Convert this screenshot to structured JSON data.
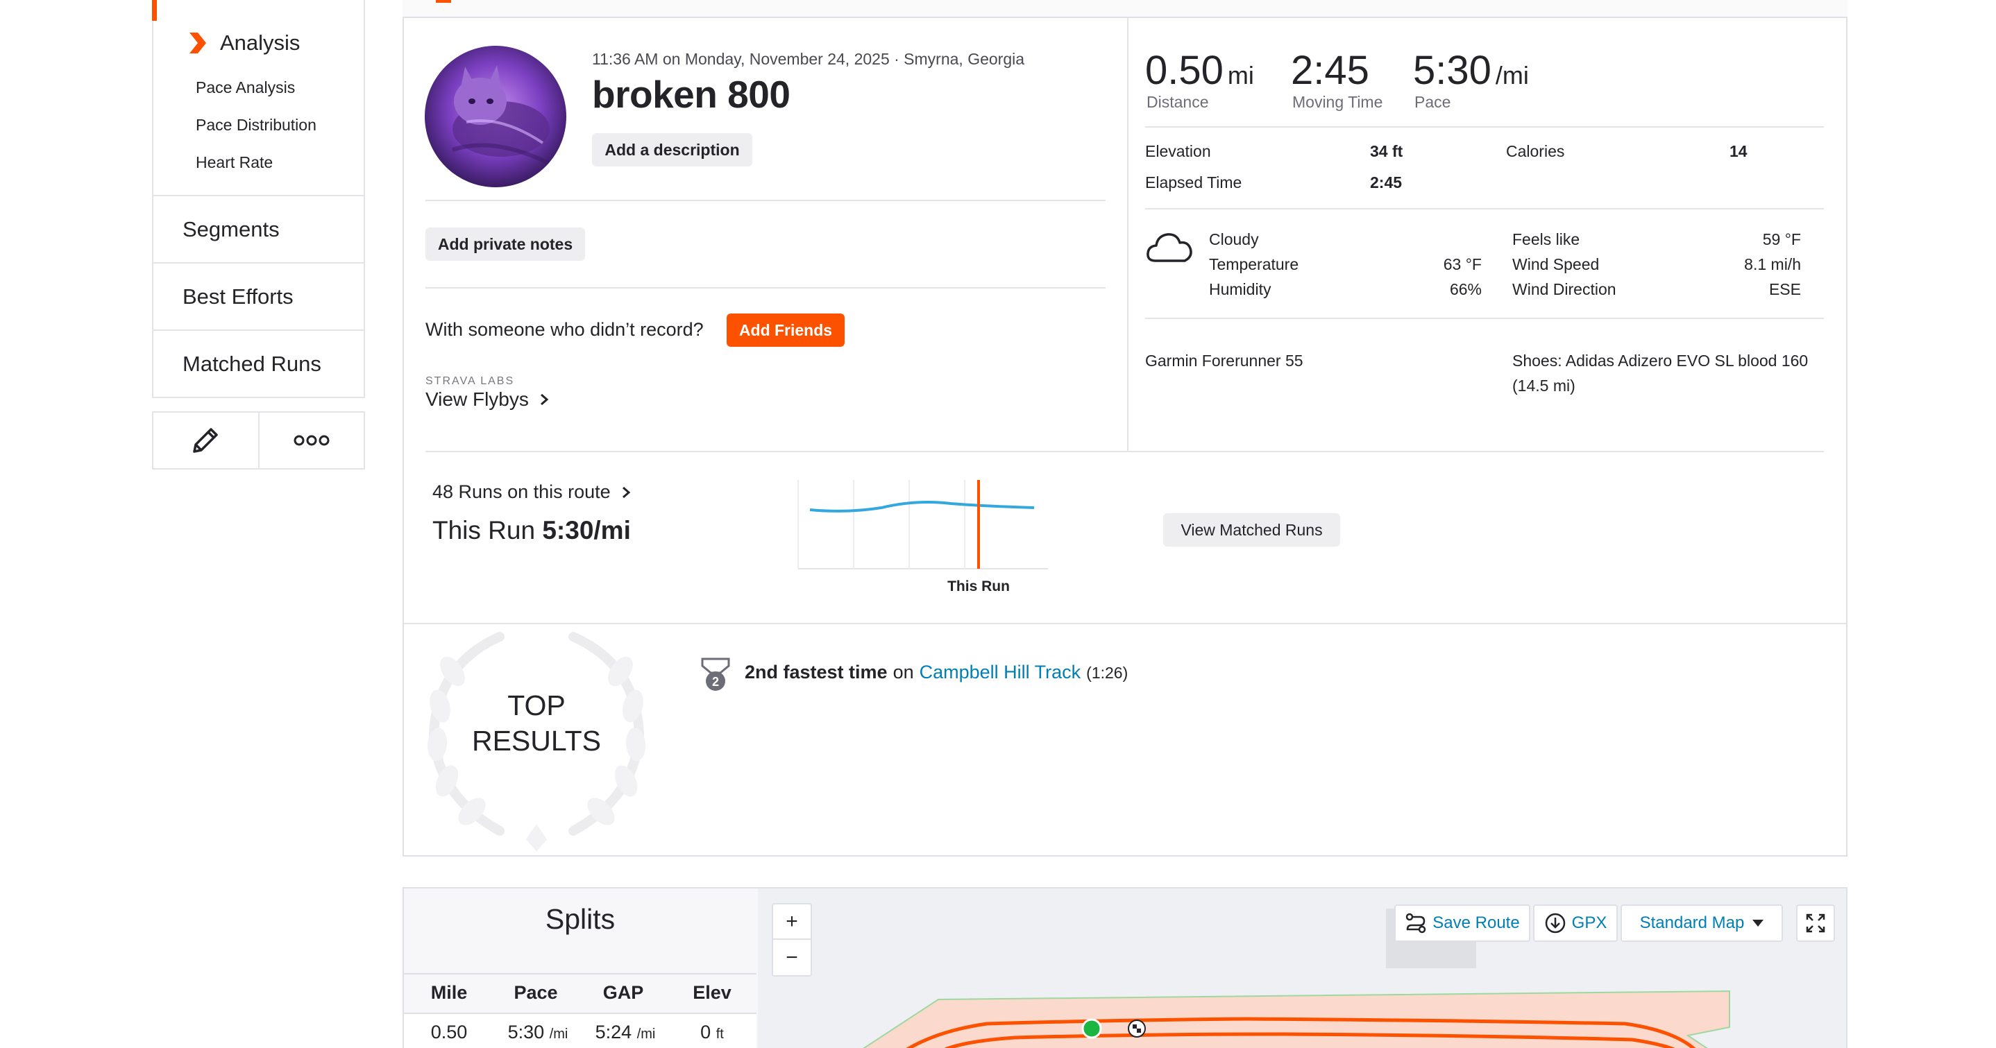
{
  "sidebar": {
    "analysis_label": "Analysis",
    "sub_items": [
      "Pace Analysis",
      "Pace Distribution",
      "Heart Rate"
    ],
    "items": [
      "Segments",
      "Best Efforts",
      "Matched Runs"
    ],
    "edit_icon": "pencil-icon",
    "more_icon": "more-dots-icon"
  },
  "activity": {
    "meta": "11:36 AM on Monday, November 24, 2025 · Smyrna, Georgia",
    "title": "broken 800",
    "add_description": "Add a description",
    "add_private_notes": "Add private notes",
    "with_someone": "With someone who didn’t record?",
    "add_friends": "Add Friends",
    "labs_label": "STRAVA LABS",
    "view_flybys": "View Flybys"
  },
  "stats": {
    "distance_value": "0.50",
    "distance_unit": "mi",
    "distance_label": "Distance",
    "moving_time_value": "2:45",
    "moving_time_label": "Moving Time",
    "pace_value": "5:30",
    "pace_unit": "/mi",
    "pace_label": "Pace",
    "elevation_label": "Elevation",
    "elevation_value": "34 ft",
    "calories_label": "Calories",
    "calories_value": "14",
    "elapsed_label": "Elapsed Time",
    "elapsed_value": "2:45"
  },
  "weather": {
    "condition": "Cloudy",
    "temperature_label": "Temperature",
    "temperature_value": "63 °F",
    "humidity_label": "Humidity",
    "humidity_value": "66%",
    "feels_like_label": "Feels like",
    "feels_like_value": "59 °F",
    "wind_speed_label": "Wind Speed",
    "wind_speed_value": "8.1 mi/h",
    "wind_direction_label": "Wind Direction",
    "wind_direction_value": "ESE",
    "icon": "cloud-icon"
  },
  "gear": {
    "device": "Garmin Forerunner 55",
    "shoes_line1": "Shoes: Adidas Adizero EVO SL blood 160",
    "shoes_line2": "(14.5 mi)"
  },
  "route": {
    "runs_count": "48 Runs on this route",
    "this_run_prefix": "This Run",
    "this_run_pace": "5:30/mi",
    "chart_marker_label": "This Run",
    "view_matched": "View Matched Runs"
  },
  "top_results": {
    "title_line1": "TOP",
    "title_line2": "RESULTS",
    "rank_text": "2nd fastest time",
    "on_text": "on",
    "segment": "Campbell Hill Track",
    "time": "(1:26)",
    "medal_number": "2"
  },
  "splits": {
    "title": "Splits",
    "headers": [
      "Mile",
      "Pace",
      "GAP",
      "Elev"
    ],
    "row": {
      "mile": "0.50",
      "pace": "5:30",
      "pace_unit": "/mi",
      "gap": "5:24",
      "gap_unit": "/mi",
      "elev": "0",
      "elev_unit": "ft"
    }
  },
  "map": {
    "zoom_in": "+",
    "zoom_out": "−",
    "save_route": "Save Route",
    "gpx": "GPX",
    "map_type": "Standard Map"
  },
  "colors": {
    "accent": "#fc5200",
    "link": "#007fb6",
    "chart_line": "#33a8de"
  }
}
